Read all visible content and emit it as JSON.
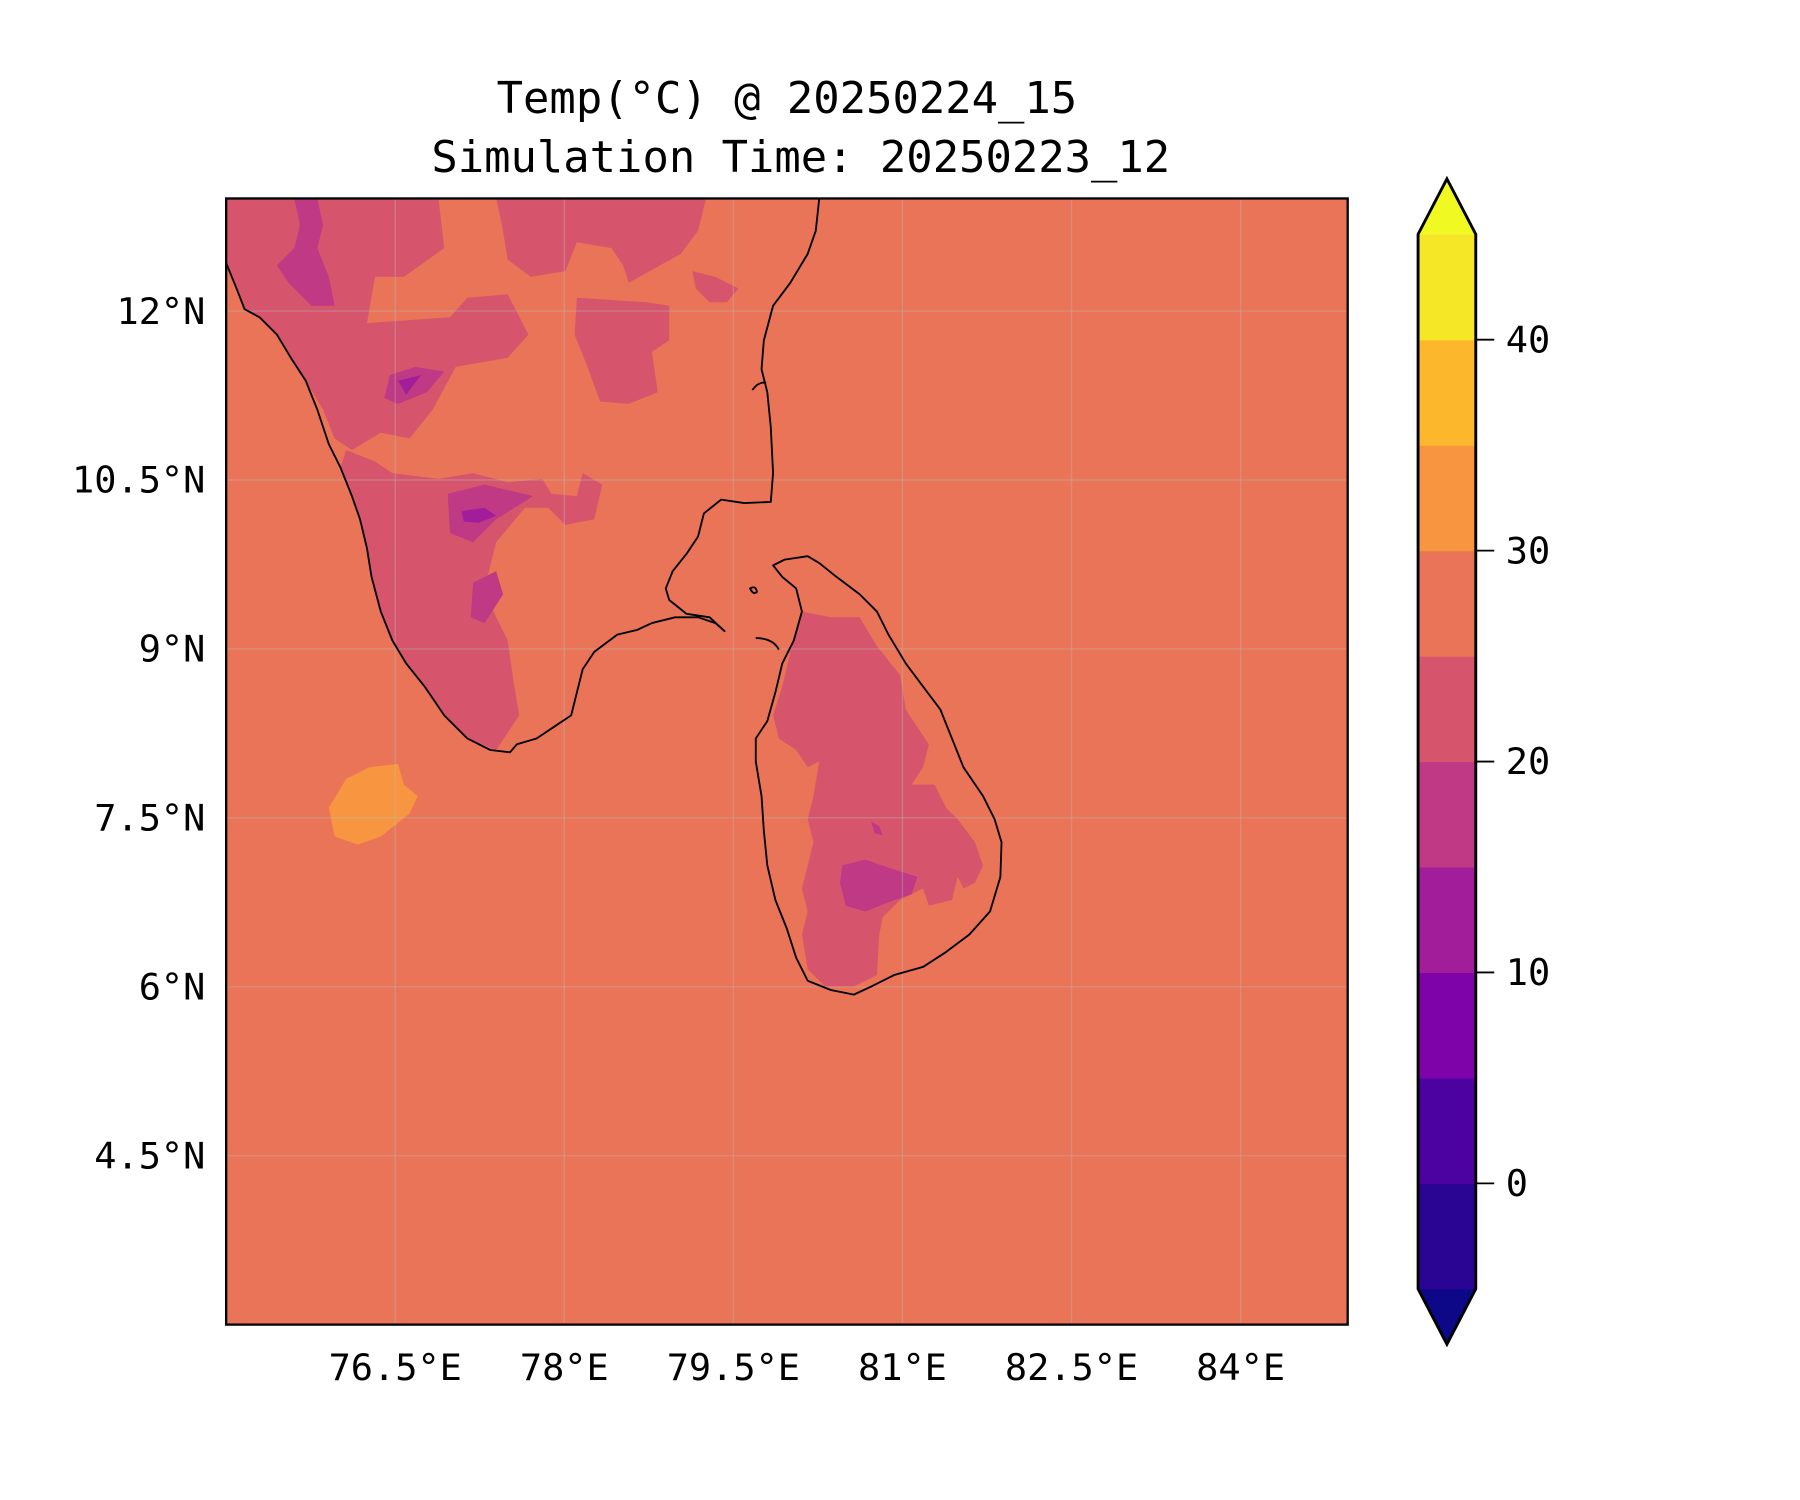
{
  "chart_data": {
    "type": "heatmap",
    "subtype": "filled-contour-map",
    "title_line1": "Temp(°C) @ 20250224_15",
    "title_line2": "Simulation Time: 20250223_12",
    "xlabel": "",
    "ylabel": "",
    "xlim": [
      75.0,
      84.95
    ],
    "ylim": [
      3.0,
      13.0
    ],
    "x_ticks": [
      76.5,
      78,
      79.5,
      81,
      82.5,
      84
    ],
    "x_tick_labels": [
      "76.5°E",
      "78°E",
      "79.5°E",
      "81°E",
      "82.5°E",
      "84°E"
    ],
    "y_ticks": [
      12,
      10.5,
      9,
      7.5,
      6,
      4.5
    ],
    "y_tick_labels": [
      "12°N",
      "10.5°N",
      "9°N",
      "7.5°N",
      "6°N",
      "4.5°N"
    ],
    "grid": true,
    "colorbar": {
      "placement": "right",
      "levels": [
        -5,
        0,
        5,
        10,
        15,
        20,
        25,
        30,
        35,
        40,
        45
      ],
      "extend": "both",
      "colors": [
        "#2a0593",
        "#4c02a1",
        "#7e03a8",
        "#a21d9a",
        "#bf3984",
        "#d6556d",
        "#ea7457",
        "#f89540",
        "#fdb72d",
        "#f5e626"
      ],
      "under_color": "#0d0887",
      "over_color": "#f0f921",
      "ticks": [
        0,
        10,
        20,
        30,
        40
      ],
      "tick_labels": [
        "0",
        "10",
        "20",
        "30",
        "40"
      ]
    },
    "colormap": "plasma",
    "background_value_band": [
      25,
      30
    ]
  }
}
